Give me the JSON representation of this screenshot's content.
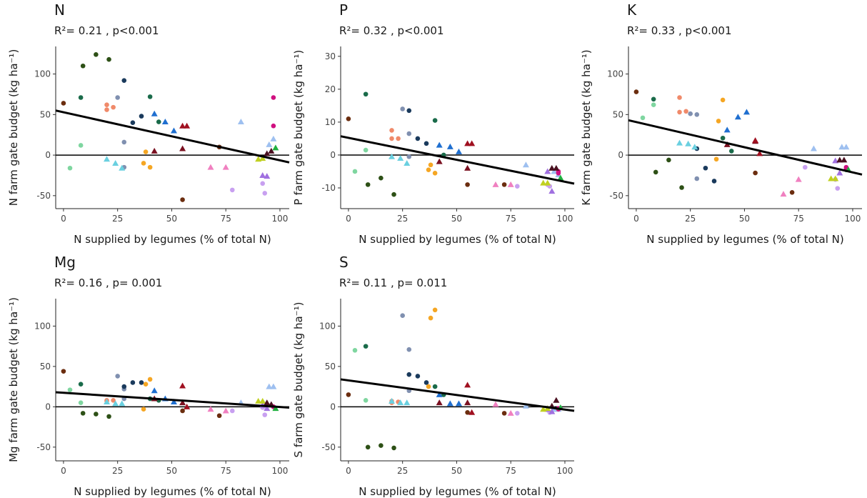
{
  "chart_data": [
    {
      "type": "scatter",
      "title": "N",
      "annotation": "R²= 0.21 , p<0.001",
      "x_label": "N supplied by legumes (% of total N)",
      "y_label": "N farm gate budget (kg ha⁻¹)",
      "x": [
        0,
        9,
        15,
        21,
        8,
        8,
        3,
        20,
        20,
        23,
        25,
        28,
        28,
        28,
        32,
        36,
        40,
        44,
        20,
        24,
        27,
        38,
        37,
        40,
        42,
        47,
        51,
        42,
        55,
        55,
        57,
        55,
        68,
        75,
        72,
        82,
        95,
        97,
        78,
        92,
        93,
        92,
        94,
        90,
        92,
        97,
        97,
        98,
        96,
        94
      ],
      "values": [
        64,
        110,
        124,
        118,
        71,
        12,
        -16,
        56,
        62,
        59,
        71,
        16,
        -15,
        92,
        40,
        48,
        72,
        41,
        -5,
        -10,
        -16,
        4,
        -10,
        -15,
        51,
        41,
        30,
        5,
        8,
        36,
        36,
        -55,
        -15,
        -15,
        10,
        41,
        13,
        20,
        -43,
        -35,
        -47,
        -25,
        -26,
        -5,
        -4,
        71,
        36,
        9,
        5,
        2
      ],
      "colors": [
        "#6b2d0f",
        "#2d5016",
        "#2d5016",
        "#2d5016",
        "#1a6b4a",
        "#7fd6a0",
        "#7fd6a0",
        "#f08a6a",
        "#f08a6a",
        "#f08a6a",
        "#8090b0",
        "#8090b0",
        "#8090b0",
        "#1a3a5c",
        "#1a3a5c",
        "#1a3a5c",
        "#1a6b4a",
        "#1a6b4a",
        "#6ad0e0",
        "#6ad0e0",
        "#6ad0e0",
        "#f5a623",
        "#f5a623",
        "#f5a623",
        "#1f6fd0",
        "#1f6fd0",
        "#1f6fd0",
        "#7a1020",
        "#7a1020",
        "#a01020",
        "#a01020",
        "#6b2d0f",
        "#f080c0",
        "#f080c0",
        "#6b2d0f",
        "#9ec0f0",
        "#9ec0f0",
        "#9ec0f0",
        "#c8a0f0",
        "#c8a0f0",
        "#c8a0f0",
        "#a070e0",
        "#a070e0",
        "#c0d020",
        "#c0d020",
        "#d01080",
        "#d01080",
        "#20b040",
        "#4a1020",
        "#4a1020"
      ],
      "markers": [
        "c",
        "c",
        "c",
        "c",
        "c",
        "c",
        "c",
        "c",
        "c",
        "c",
        "c",
        "c",
        "c",
        "c",
        "c",
        "c",
        "c",
        "c",
        "t",
        "t",
        "t",
        "c",
        "c",
        "c",
        "t",
        "t",
        "t",
        "t",
        "t",
        "t",
        "t",
        "c",
        "t",
        "t",
        "c",
        "t",
        "t",
        "t",
        "c",
        "c",
        "c",
        "t",
        "t",
        "t",
        "t",
        "c",
        "c",
        "t",
        "t",
        "t"
      ],
      "fit": {
        "x": [
          -3.6,
          104.3
        ],
        "y": [
          55,
          -9
        ]
      },
      "ref_line": 0,
      "xlim": [
        -3.6,
        104.3
      ],
      "ylim": [
        -66,
        134
      ],
      "xticks": [
        0,
        25,
        50,
        75,
        100
      ],
      "yticks": [
        -50,
        0,
        50,
        100
      ]
    },
    {
      "type": "scatter",
      "title": "P",
      "annotation": "R²= 0.32 , p<0.001",
      "x_label": "N supplied by legumes (% of total N)",
      "y_label": "P farm gate budget (kg ha⁻¹)",
      "x": [
        0,
        9,
        15,
        21,
        8,
        8,
        3,
        20,
        20,
        23,
        25,
        28,
        28,
        28,
        32,
        36,
        40,
        44,
        20,
        24,
        27,
        38,
        37,
        40,
        42,
        47,
        51,
        42,
        55,
        55,
        57,
        55,
        68,
        75,
        72,
        82,
        95,
        97,
        78,
        92,
        93,
        92,
        94,
        90,
        92,
        97,
        97,
        98,
        96,
        94
      ],
      "values": [
        11,
        -9,
        -7,
        -12,
        18.5,
        1.5,
        -5,
        5,
        7.5,
        5,
        14,
        6.5,
        -0.5,
        13.5,
        5,
        3.5,
        10.5,
        0,
        -0.5,
        -1,
        -2.5,
        -3,
        -4.5,
        -5.5,
        3,
        2.5,
        1,
        -2,
        -4,
        3.5,
        3.5,
        -9,
        -9,
        -9,
        -9,
        -3,
        -5,
        -6,
        -9.5,
        -9,
        -9.5,
        -5,
        -11,
        -8.5,
        -8.5,
        -5,
        -5.5,
        -7,
        -4,
        -4
      ],
      "colors": [
        "#6b2d0f",
        "#2d5016",
        "#2d5016",
        "#2d5016",
        "#1a6b4a",
        "#7fd6a0",
        "#7fd6a0",
        "#f08a6a",
        "#f08a6a",
        "#f08a6a",
        "#8090b0",
        "#8090b0",
        "#8090b0",
        "#1a3a5c",
        "#1a3a5c",
        "#1a3a5c",
        "#1a6b4a",
        "#1a6b4a",
        "#6ad0e0",
        "#6ad0e0",
        "#6ad0e0",
        "#f5a623",
        "#f5a623",
        "#f5a623",
        "#1f6fd0",
        "#1f6fd0",
        "#1f6fd0",
        "#7a1020",
        "#7a1020",
        "#a01020",
        "#a01020",
        "#6b2d0f",
        "#f080c0",
        "#f080c0",
        "#6b2d0f",
        "#9ec0f0",
        "#9ec0f0",
        "#9ec0f0",
        "#c8a0f0",
        "#c8a0f0",
        "#c8a0f0",
        "#a070e0",
        "#a070e0",
        "#c0d020",
        "#c0d020",
        "#d01080",
        "#d01080",
        "#20b040",
        "#4a1020",
        "#4a1020"
      ],
      "markers": [
        "c",
        "c",
        "c",
        "c",
        "c",
        "c",
        "c",
        "c",
        "c",
        "c",
        "c",
        "c",
        "c",
        "c",
        "c",
        "c",
        "c",
        "c",
        "t",
        "t",
        "t",
        "c",
        "c",
        "c",
        "t",
        "t",
        "t",
        "t",
        "t",
        "t",
        "t",
        "c",
        "t",
        "t",
        "c",
        "t",
        "t",
        "t",
        "c",
        "c",
        "c",
        "t",
        "t",
        "t",
        "t",
        "c",
        "c",
        "t",
        "t",
        "t"
      ],
      "fit": {
        "x": [
          -3.6,
          104.3
        ],
        "y": [
          5.7,
          -8.7
        ]
      },
      "ref_line": 0,
      "xlim": [
        -3.6,
        104.3
      ],
      "ylim": [
        -16.3,
        33
      ],
      "xticks": [
        0,
        25,
        50,
        75,
        100
      ],
      "yticks": [
        -10,
        0,
        10,
        20,
        30
      ]
    },
    {
      "type": "scatter",
      "title": "K",
      "annotation": "R²= 0.33 , p<0.001",
      "x_label": "N supplied by legumes (% of total N)",
      "y_label": "K farm gate budget (kg ha⁻¹)",
      "x": [
        0,
        9,
        15,
        21,
        8,
        8,
        3,
        20,
        20,
        23,
        25,
        28,
        28,
        28,
        32,
        36,
        40,
        44,
        20,
        24,
        27,
        38,
        37,
        40,
        42,
        47,
        51,
        42,
        55,
        55,
        57,
        55,
        68,
        75,
        72,
        82,
        95,
        97,
        78,
        92,
        93,
        92,
        94,
        90,
        92,
        97,
        97,
        98,
        96,
        94
      ],
      "values": [
        78,
        -21,
        -6,
        -40,
        69,
        62,
        46,
        53,
        71,
        54,
        51,
        50,
        -29,
        8,
        -16,
        -32,
        21,
        5,
        15,
        14,
        10,
        42,
        -5,
        68,
        31,
        47,
        53,
        13,
        17,
        18,
        2,
        -22,
        -48,
        -30,
        -46,
        8,
        10,
        10,
        -15,
        -30,
        -41,
        -7,
        -22,
        -29,
        -29,
        -17,
        -15,
        -18,
        -6,
        -6
      ],
      "colors": [
        "#6b2d0f",
        "#2d5016",
        "#2d5016",
        "#2d5016",
        "#1a6b4a",
        "#7fd6a0",
        "#7fd6a0",
        "#f08a6a",
        "#f08a6a",
        "#f08a6a",
        "#8090b0",
        "#8090b0",
        "#8090b0",
        "#1a3a5c",
        "#1a3a5c",
        "#1a3a5c",
        "#1a6b4a",
        "#1a6b4a",
        "#6ad0e0",
        "#6ad0e0",
        "#6ad0e0",
        "#f5a623",
        "#f5a623",
        "#f5a623",
        "#1f6fd0",
        "#1f6fd0",
        "#1f6fd0",
        "#7a1020",
        "#7a1020",
        "#a01020",
        "#a01020",
        "#6b2d0f",
        "#f080c0",
        "#f080c0",
        "#6b2d0f",
        "#9ec0f0",
        "#9ec0f0",
        "#9ec0f0",
        "#c8a0f0",
        "#c8a0f0",
        "#c8a0f0",
        "#a070e0",
        "#a070e0",
        "#c0d020",
        "#c0d020",
        "#d01080",
        "#d01080",
        "#20b040",
        "#4a1020",
        "#4a1020"
      ],
      "markers": [
        "c",
        "c",
        "c",
        "c",
        "c",
        "c",
        "c",
        "c",
        "c",
        "c",
        "c",
        "c",
        "c",
        "c",
        "c",
        "c",
        "c",
        "c",
        "t",
        "t",
        "t",
        "c",
        "c",
        "c",
        "t",
        "t",
        "t",
        "t",
        "t",
        "t",
        "t",
        "c",
        "t",
        "t",
        "c",
        "t",
        "t",
        "t",
        "c",
        "c",
        "c",
        "t",
        "t",
        "t",
        "t",
        "c",
        "c",
        "t",
        "t",
        "t"
      ],
      "fit": {
        "x": [
          -3.6,
          104.3
        ],
        "y": [
          43,
          -24
        ]
      },
      "ref_line": 0,
      "xlim": [
        -3.6,
        104.3
      ],
      "ylim": [
        -66,
        134
      ],
      "xticks": [
        0,
        25,
        50,
        75,
        100
      ],
      "yticks": [
        -50,
        0,
        50,
        100
      ]
    },
    {
      "type": "scatter",
      "title": "Mg",
      "annotation": "R²= 0.16 , p= 0.001",
      "x_label": "N supplied by legumes (% of total N)",
      "y_label": "Mg farm gate budget (kg ha⁻¹)",
      "x": [
        0,
        9,
        15,
        21,
        8,
        8,
        3,
        20,
        20,
        23,
        25,
        28,
        28,
        28,
        32,
        36,
        40,
        44,
        20,
        24,
        27,
        38,
        37,
        40,
        42,
        47,
        51,
        42,
        55,
        55,
        57,
        55,
        68,
        75,
        72,
        82,
        95,
        97,
        78,
        92,
        93,
        92,
        94,
        90,
        92,
        97,
        97,
        98,
        96,
        94
      ],
      "values": [
        44,
        -8,
        -9,
        -12,
        28,
        5,
        21,
        7,
        8,
        8,
        38,
        10,
        22,
        25,
        30,
        30,
        10,
        8,
        6,
        4,
        4,
        28,
        -3,
        34,
        20,
        10,
        6,
        10,
        5,
        26,
        0,
        -5,
        -3,
        -5,
        -11,
        5,
        25,
        25,
        -5,
        -1,
        -10,
        2,
        -2,
        7,
        7,
        0,
        0,
        -2,
        3,
        5
      ],
      "colors": [
        "#6b2d0f",
        "#2d5016",
        "#2d5016",
        "#2d5016",
        "#1a6b4a",
        "#7fd6a0",
        "#7fd6a0",
        "#f08a6a",
        "#f08a6a",
        "#f08a6a",
        "#8090b0",
        "#8090b0",
        "#8090b0",
        "#1a3a5c",
        "#1a3a5c",
        "#1a3a5c",
        "#1a6b4a",
        "#1a6b4a",
        "#6ad0e0",
        "#6ad0e0",
        "#6ad0e0",
        "#f5a623",
        "#f5a623",
        "#f5a623",
        "#1f6fd0",
        "#1f6fd0",
        "#1f6fd0",
        "#7a1020",
        "#7a1020",
        "#a01020",
        "#a01020",
        "#6b2d0f",
        "#f080c0",
        "#f080c0",
        "#6b2d0f",
        "#9ec0f0",
        "#9ec0f0",
        "#9ec0f0",
        "#c8a0f0",
        "#c8a0f0",
        "#c8a0f0",
        "#a070e0",
        "#a070e0",
        "#c0d020",
        "#c0d020",
        "#d01080",
        "#d01080",
        "#20b040",
        "#4a1020",
        "#4a1020"
      ],
      "markers": [
        "c",
        "c",
        "c",
        "c",
        "c",
        "c",
        "c",
        "c",
        "c",
        "c",
        "c",
        "c",
        "c",
        "c",
        "c",
        "c",
        "c",
        "c",
        "t",
        "t",
        "t",
        "c",
        "c",
        "c",
        "t",
        "t",
        "t",
        "t",
        "t",
        "t",
        "t",
        "c",
        "t",
        "t",
        "c",
        "t",
        "t",
        "t",
        "c",
        "c",
        "c",
        "t",
        "t",
        "t",
        "t",
        "c",
        "c",
        "t",
        "t",
        "t"
      ],
      "fit": {
        "x": [
          -3.6,
          104.3
        ],
        "y": [
          18,
          -1
        ]
      },
      "ref_line": 0,
      "xlim": [
        -3.6,
        104.3
      ],
      "ylim": [
        -67,
        134
      ],
      "xticks": [
        0,
        25,
        50,
        75,
        100
      ],
      "yticks": [
        -50,
        0,
        50,
        100
      ]
    },
    {
      "type": "scatter",
      "title": "S",
      "annotation": "R²= 0.11 , p= 0.011",
      "x_label": "N supplied by legumes (% of total N)",
      "y_label": "S farm gate budget (kg ha⁻¹)",
      "x": [
        0,
        9,
        15,
        21,
        8,
        8,
        3,
        20,
        20,
        23,
        25,
        28,
        28,
        28,
        32,
        36,
        40,
        44,
        20,
        24,
        27,
        38,
        37,
        40,
        42,
        47,
        51,
        42,
        55,
        55,
        57,
        55,
        68,
        75,
        72,
        82,
        95,
        97,
        78,
        92,
        93,
        92,
        94,
        90,
        92,
        97,
        97,
        98,
        96,
        94
      ],
      "values": [
        15,
        -50,
        -48,
        -51,
        75,
        8,
        70,
        5,
        7,
        6,
        113,
        71,
        20,
        40,
        38,
        30,
        25,
        15,
        7,
        5,
        5,
        110,
        25,
        120,
        15,
        4,
        4,
        5,
        5,
        27,
        -7,
        -7,
        3,
        -8,
        -8,
        1,
        -3,
        -3,
        -8,
        -4,
        -7,
        -3,
        -6,
        -3,
        -2,
        -2,
        -3,
        -1,
        8,
        1
      ],
      "colors": [
        "#6b2d0f",
        "#2d5016",
        "#2d5016",
        "#2d5016",
        "#1a6b4a",
        "#7fd6a0",
        "#7fd6a0",
        "#f08a6a",
        "#f08a6a",
        "#f08a6a",
        "#8090b0",
        "#8090b0",
        "#8090b0",
        "#1a3a5c",
        "#1a3a5c",
        "#1a3a5c",
        "#1a6b4a",
        "#1a6b4a",
        "#6ad0e0",
        "#6ad0e0",
        "#6ad0e0",
        "#f5a623",
        "#f5a623",
        "#f5a623",
        "#1f6fd0",
        "#1f6fd0",
        "#1f6fd0",
        "#7a1020",
        "#7a1020",
        "#a01020",
        "#a01020",
        "#6b2d0f",
        "#f080c0",
        "#f080c0",
        "#6b2d0f",
        "#9ec0f0",
        "#9ec0f0",
        "#9ec0f0",
        "#c8a0f0",
        "#c8a0f0",
        "#c8a0f0",
        "#a070e0",
        "#a070e0",
        "#c0d020",
        "#c0d020",
        "#d01080",
        "#d01080",
        "#20b040",
        "#4a1020",
        "#4a1020"
      ],
      "markers": [
        "c",
        "c",
        "c",
        "c",
        "c",
        "c",
        "c",
        "c",
        "c",
        "c",
        "c",
        "c",
        "c",
        "c",
        "c",
        "c",
        "c",
        "c",
        "t",
        "t",
        "t",
        "c",
        "c",
        "c",
        "t",
        "t",
        "t",
        "t",
        "t",
        "t",
        "t",
        "c",
        "t",
        "t",
        "c",
        "t",
        "t",
        "t",
        "c",
        "c",
        "c",
        "t",
        "t",
        "t",
        "t",
        "c",
        "c",
        "t",
        "t",
        "t"
      ],
      "fit": {
        "x": [
          -3.6,
          104.3
        ],
        "y": [
          34,
          -5
        ]
      },
      "ref_line": 0,
      "xlim": [
        -3.6,
        104.3
      ],
      "ylim": [
        -67,
        134
      ],
      "xticks": [
        0,
        25,
        50,
        75,
        100
      ],
      "yticks": [
        -50,
        0,
        50,
        100
      ]
    }
  ]
}
